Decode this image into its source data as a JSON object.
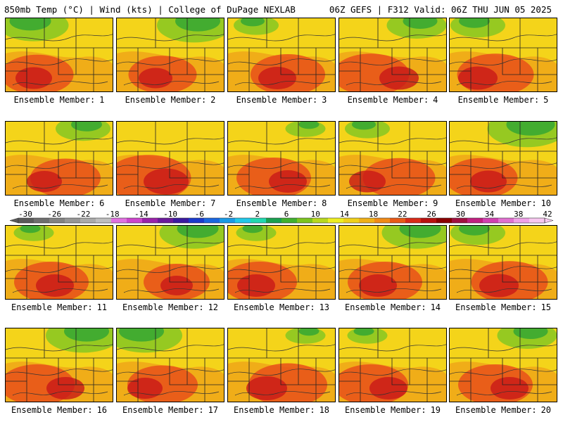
{
  "header": {
    "left": "850mb Temp (°C) | Wind (kts) | College of DuPage NEXLAB",
    "right": "06Z GEFS | F312 Valid: 06Z THU JUN 05 2025"
  },
  "panel_label_prefix": "Ensemble Member:",
  "panels": [
    {
      "member": "1",
      "warm": 0.55,
      "cool_nw": 0.7
    },
    {
      "member": "2",
      "warm": 0.45,
      "cool_nw": 0.8
    },
    {
      "member": "3",
      "warm": 0.6,
      "cool_nw": 0.2
    },
    {
      "member": "4",
      "warm": 0.65,
      "cool_nw": 0.5
    },
    {
      "member": "5",
      "warm": 0.65,
      "cool_nw": 0.4
    },
    {
      "member": "6",
      "warm": 0.5,
      "cool_nw": 0.4
    },
    {
      "member": "7",
      "warm": 0.85,
      "cool_nw": 0.0
    },
    {
      "member": "8",
      "warm": 0.6,
      "cool_nw": 0.1
    },
    {
      "member": "9",
      "warm": 0.55,
      "cool_nw": 0.2
    },
    {
      "member": "10",
      "warm": 0.55,
      "cool_nw": 0.9
    },
    {
      "member": "11",
      "warm": 0.6,
      "cool_nw": 0.1
    },
    {
      "member": "12",
      "warm": 0.4,
      "cool_nw": 0.7
    },
    {
      "member": "13",
      "warm": 0.6,
      "cool_nw": 0.1
    },
    {
      "member": "14",
      "warm": 0.6,
      "cool_nw": 0.7
    },
    {
      "member": "15",
      "warm": 0.65,
      "cool_nw": 0.4
    },
    {
      "member": "16",
      "warm": 0.6,
      "cool_nw": 0.8
    },
    {
      "member": "17",
      "warm": 0.5,
      "cool_nw": 0.8
    },
    {
      "member": "18",
      "warm": 0.7,
      "cool_nw": 0.1
    },
    {
      "member": "19",
      "warm": 0.6,
      "cool_nw": 0.1
    },
    {
      "member": "20",
      "warm": 0.6,
      "cool_nw": 0.5
    }
  ],
  "colorbar": {
    "tick_labels": [
      "-30",
      "-26",
      "-22",
      "-18",
      "-14",
      "-10",
      "-6",
      "-2",
      "2",
      "6",
      "10",
      "14",
      "18",
      "22",
      "26",
      "30",
      "34",
      "38",
      "42"
    ],
    "colors": [
      "#5a5a5a",
      "#6e6e6e",
      "#828282",
      "#969696",
      "#aaaaaa",
      "#bebebe",
      "#e070e0",
      "#cc44cc",
      "#9922aa",
      "#6a1a9a",
      "#3a1aa0",
      "#1a3acc",
      "#1a66e0",
      "#1a9ae6",
      "#22c8e8",
      "#22d8b0",
      "#1aa050",
      "#40b030",
      "#7cc420",
      "#b8d820",
      "#eeee22",
      "#f0d01a",
      "#f0b018",
      "#f08a18",
      "#e85a18",
      "#d82a18",
      "#b81010",
      "#8a0000",
      "#a01040",
      "#c02080",
      "#d040b0",
      "#e070d0",
      "#f0a0e8",
      "#f8c8f0"
    ]
  }
}
